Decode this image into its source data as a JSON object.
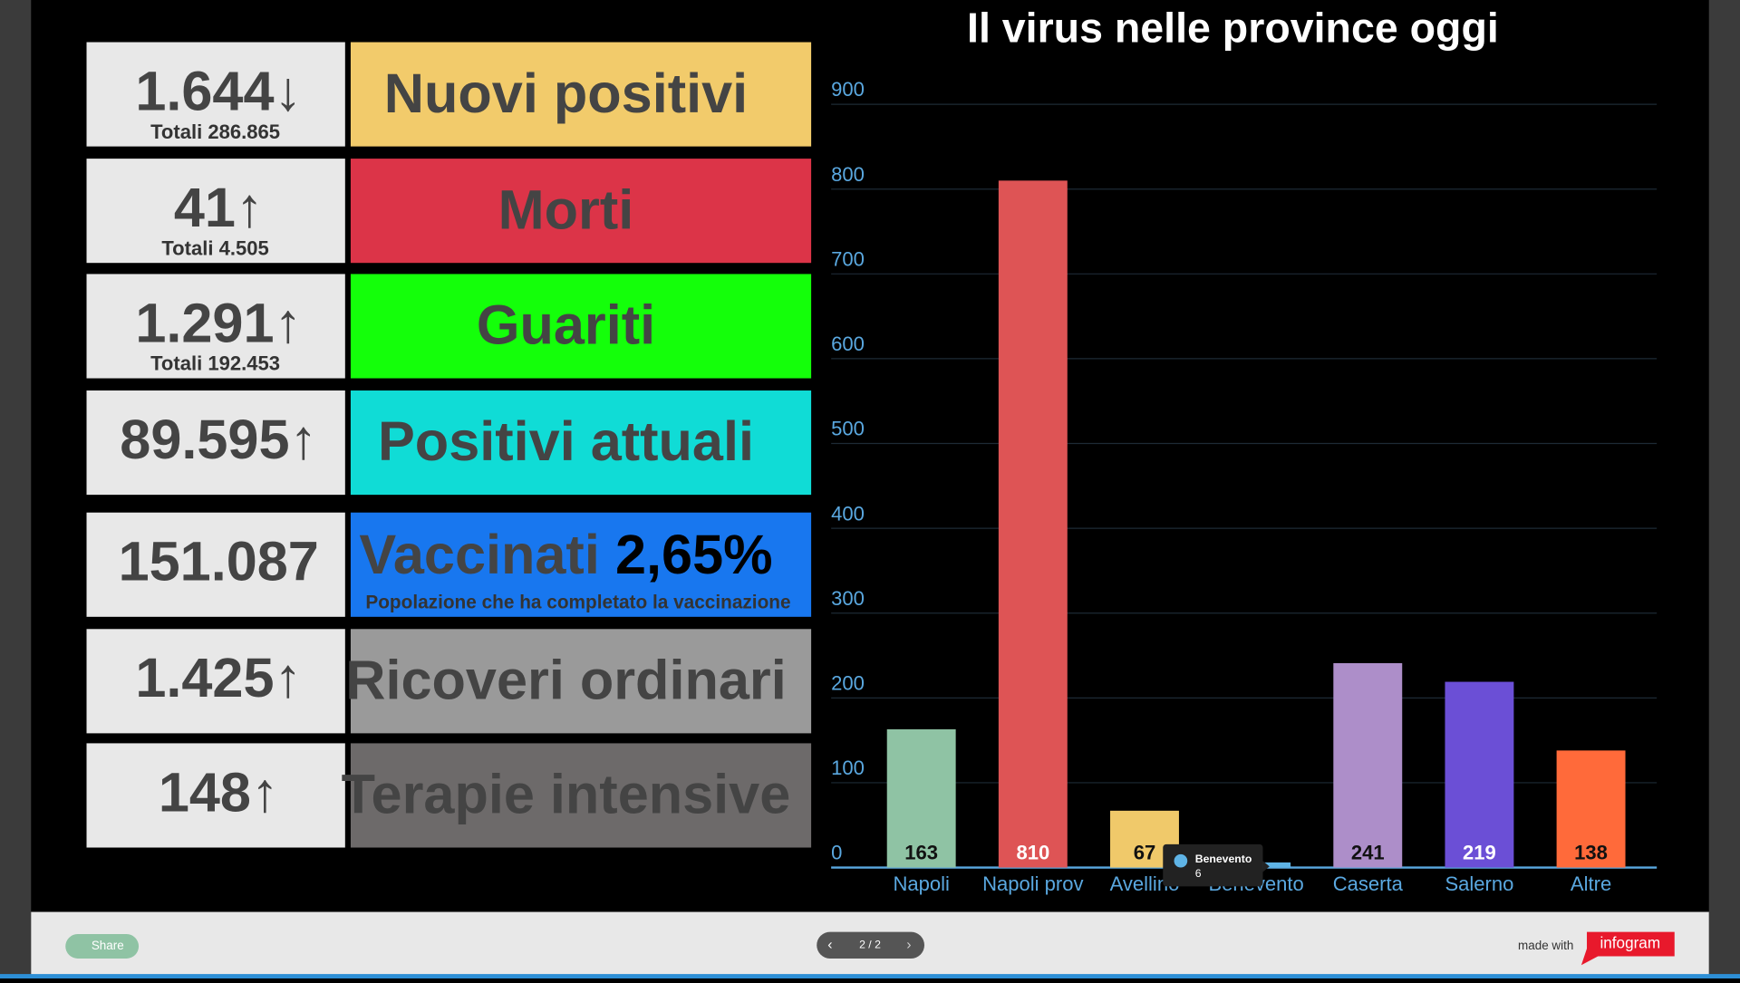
{
  "panels": [
    {
      "value": "1.644↓",
      "total": "Totali 286.865",
      "label": "Nuovi positivi",
      "color": "#f2cb6b"
    },
    {
      "value": "41↑",
      "total": "Totali 4.505",
      "label": "Morti",
      "color": "#dc3448"
    },
    {
      "value": "1.291↑",
      "total": "Totali 192.453",
      "label": "Guariti",
      "color": "#14ff0a"
    },
    {
      "value": "89.595↑",
      "label": "Positivi attuali",
      "color": "#10dcd6"
    },
    {
      "value": "151.087",
      "label": "Vaccinati",
      "label_extra": "2,65%",
      "note": "Popolazione che ha completato la vaccinazione",
      "color": "#1877ef"
    },
    {
      "value": "1.425↑",
      "label": "Ricoveri ordinari",
      "color": "#9a9a9a"
    },
    {
      "value": "148↑",
      "label": "Terapie intensive",
      "color": "#6d6a6a"
    }
  ],
  "chart_data": {
    "type": "bar",
    "title": "Il virus nelle province oggi",
    "categories": [
      "Napoli",
      "Napoli prov",
      "Avellino",
      "Benevento",
      "Caserta",
      "Salerno",
      "Altre"
    ],
    "values": [
      163,
      810,
      67,
      6,
      241,
      219,
      138
    ],
    "colors": [
      "#8fc3a4",
      "#de5455",
      "#f0c96a",
      "#5fb4e6",
      "#ad8ec9",
      "#6b4fd6",
      "#ff6a3a"
    ],
    "label_colors": [
      "#111111",
      "#ffffff",
      "#111111",
      "#111111",
      "#111111",
      "#ffffff",
      "#111111"
    ],
    "ylim": [
      0,
      900
    ],
    "yticks": [
      0,
      100,
      200,
      300,
      400,
      500,
      600,
      700,
      800,
      900
    ],
    "grid": true,
    "tooltip_index": 3
  },
  "footer": {
    "share": "Share",
    "pager": "2 / 2",
    "made_with": "made with",
    "brand": "infogram"
  }
}
